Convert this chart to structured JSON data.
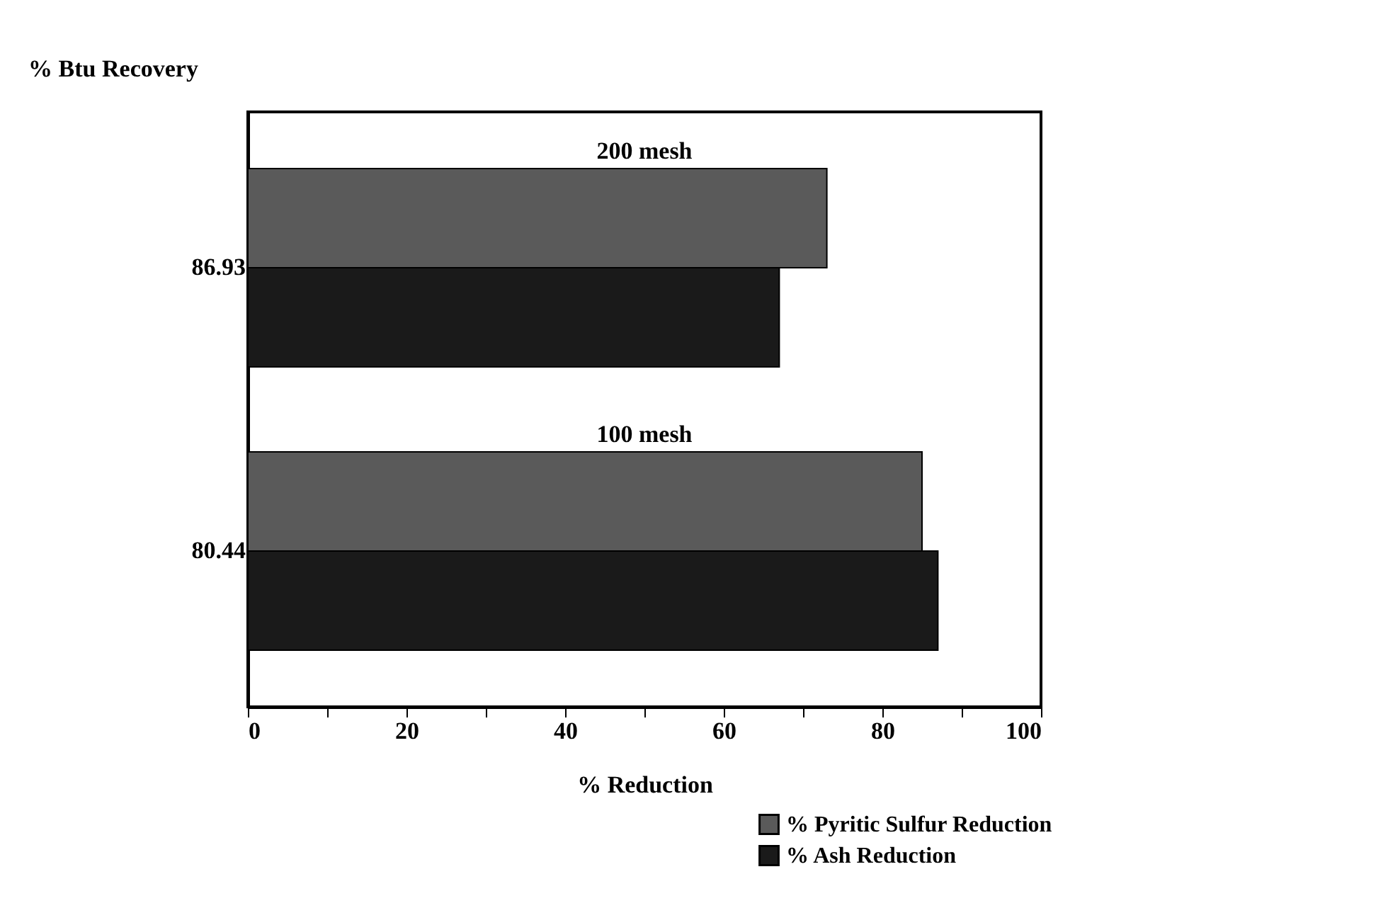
{
  "chart_data": {
    "type": "bar",
    "orientation": "horizontal",
    "ylabel": "% Btu Recovery",
    "xlabel": "% Reduction",
    "categories": [
      "86.93",
      "80.44"
    ],
    "series": [
      {
        "name": "% Pyritic Sulfur Reduction",
        "color": "#5a5a5a",
        "values": [
          73,
          85
        ]
      },
      {
        "name": "% Ash Reduction",
        "color": "#1a1a1a",
        "values": [
          67,
          87
        ]
      }
    ],
    "xlim": [
      0,
      100
    ],
    "xticks": [
      0,
      {
        "value": 10,
        "label": null
      },
      20,
      {
        "value": 30,
        "label": null
      },
      40,
      {
        "value": 50,
        "label": null
      },
      60,
      {
        "value": 70,
        "label": null
      },
      80,
      {
        "value": 90,
        "label": null
      },
      100
    ],
    "annotations": [
      "200 mesh",
      "100 mesh"
    ],
    "legend": "bottom right",
    "grid": false
  }
}
